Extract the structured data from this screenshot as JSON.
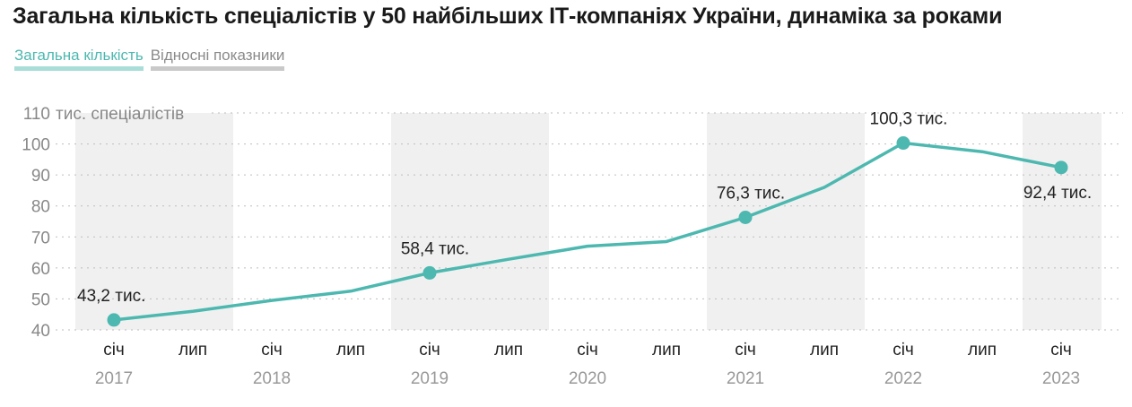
{
  "title": "Загальна кількість спеціалістів у 50 найбільших ІТ-компаніях України, динаміка за роками",
  "tabs": [
    {
      "label": "Загальна кількість",
      "active": true
    },
    {
      "label": "Відносні показники",
      "active": false
    }
  ],
  "colors": {
    "line": "#4db8b0",
    "band": "#f0f0f0",
    "grid": "#bdbdbd"
  },
  "chart_data": {
    "type": "line",
    "ylabel": "тис. спеціалістів",
    "ylim": [
      40,
      110
    ],
    "yticks": [
      40,
      50,
      60,
      70,
      80,
      90,
      100,
      110
    ],
    "x_tick_labels": [
      "січ",
      "лип",
      "січ",
      "лип",
      "січ",
      "лип",
      "січ",
      "лип",
      "січ",
      "лип",
      "січ",
      "лип",
      "січ"
    ],
    "years": [
      "2017",
      "2018",
      "2019",
      "2020",
      "2021",
      "2022",
      "2023"
    ],
    "shaded_years": [
      "2017",
      "2019",
      "2021",
      "2023"
    ],
    "series": [
      {
        "points": [
          {
            "x": "2017-01",
            "y": 43.2,
            "label": "43,2 тис."
          },
          {
            "x": "2017-07",
            "y": 46.0
          },
          {
            "x": "2018-01",
            "y": 49.5
          },
          {
            "x": "2018-07",
            "y": 52.5
          },
          {
            "x": "2019-01",
            "y": 58.4,
            "label": "58,4 тис."
          },
          {
            "x": "2019-07",
            "y": 62.8
          },
          {
            "x": "2020-01",
            "y": 67.0
          },
          {
            "x": "2020-07",
            "y": 68.5
          },
          {
            "x": "2021-01",
            "y": 76.3,
            "label": "76,3 тис."
          },
          {
            "x": "2021-07",
            "y": 86.0
          },
          {
            "x": "2022-01",
            "y": 100.3,
            "label": "100,3 тис."
          },
          {
            "x": "2022-07",
            "y": 97.5
          },
          {
            "x": "2023-01",
            "y": 92.4,
            "label": "92,4 тис."
          }
        ]
      }
    ]
  }
}
